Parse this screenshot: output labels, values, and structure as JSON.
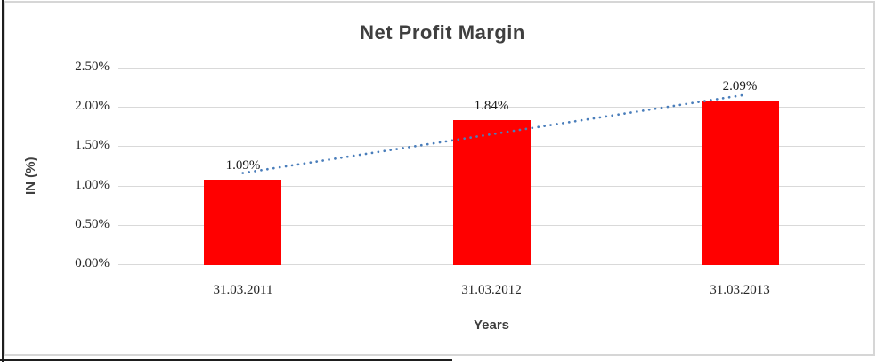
{
  "chart_data": {
    "type": "bar",
    "title": "Net Profit Margin",
    "xlabel": "Years",
    "ylabel": "IN (%)",
    "categories": [
      "31.03.2011",
      "31.03.2012",
      "31.03.2013"
    ],
    "values": [
      1.09,
      1.84,
      2.09
    ],
    "data_labels": [
      "1.09%",
      "1.84%",
      "2.09%"
    ],
    "ytick_values": [
      0,
      0.5,
      1.0,
      1.5,
      2.0,
      2.5
    ],
    "ytick_labels": [
      "0.00%",
      "0.50%",
      "1.00%",
      "1.50%",
      "2.00%",
      "2.50%"
    ],
    "ylim": [
      0,
      2.5
    ],
    "grid": true,
    "legend": "none",
    "bar_color": "#ff0000",
    "gridline_color": "#d9d9d9",
    "title_color": "#3f3f3f",
    "tick_text_color": "#262626",
    "trendline": {
      "type": "linear",
      "style": "dotted",
      "color": "#4a7ebb",
      "start_value": 1.17,
      "end_value": 2.16
    }
  }
}
